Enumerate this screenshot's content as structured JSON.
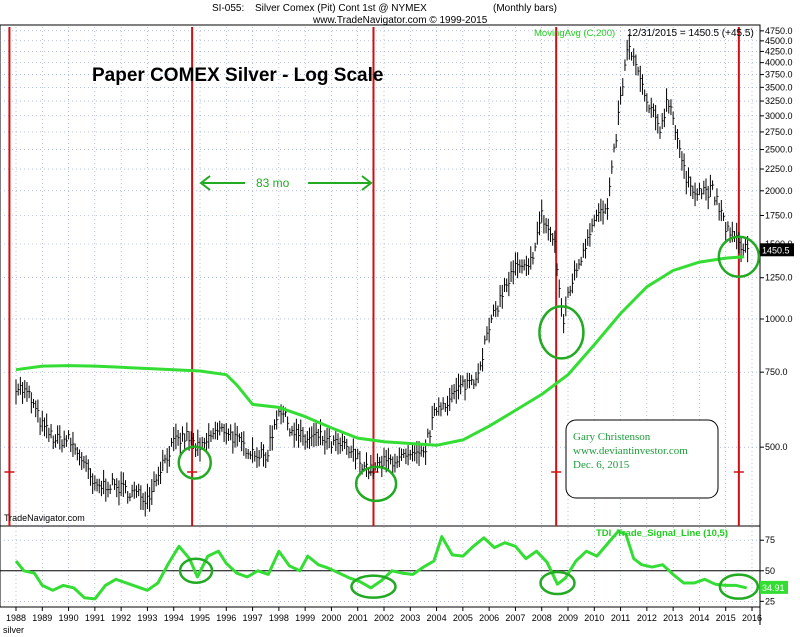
{
  "header": {
    "symbol": "SI-055:",
    "description": "Silver Comex (Pit) Cont 1st @ NYMEX",
    "period": "(Monthly bars)",
    "copyright": "www.TradeNavigator.com © 1999-2015"
  },
  "chart_data": [
    {
      "type": "bar",
      "title": "Paper COMEX Silver - Log Scale",
      "scale": "log",
      "ylim": [
        330,
        4850
      ],
      "yticks": [
        500,
        750,
        1000,
        1250,
        1500,
        1750,
        2000,
        2250,
        2500,
        2750,
        3000,
        3250,
        3500,
        3750,
        4000,
        4250,
        4500,
        4750
      ],
      "ytick_labels": [
        "500.0",
        "750.0",
        "1000.0",
        "1250.0",
        "1500.0",
        "1750.0",
        "2000.0",
        "2250.0",
        "2500.0",
        "2750.0",
        "3000.0",
        "3250.0",
        "3500.0",
        "3750.0",
        "4000.0",
        "4250.0",
        "4500.0",
        "4750.0"
      ],
      "last_value_label": "1450.5",
      "indicator_label": "MovingAvg (C,200)",
      "last_bar_info": "12/31/2015 = 1450.5 (+45.5)",
      "annotation_83mo": "83 mo",
      "watermark": "TradeNavigator.com",
      "note_lines": [
        "Gary Christenson",
        "www.deviantinvestor.com",
        "Dec. 6, 2015"
      ],
      "cycle_lows_x": [
        1987.75,
        1994.7,
        2001.6,
        2008.55,
        2015.5
      ],
      "circled_lows": [
        {
          "x": 1994.8,
          "y": 460
        },
        {
          "x": 2001.7,
          "y": 410
        },
        {
          "x": 2008.75,
          "y": 930
        },
        {
          "x": 2015.5,
          "y": 1400
        }
      ],
      "price_monthly": [
        [
          1988.0,
          700
        ],
        [
          1988.5,
          660
        ],
        [
          1989.0,
          560
        ],
        [
          1989.5,
          520
        ],
        [
          1990.0,
          520
        ],
        [
          1990.5,
          470
        ],
        [
          1991.0,
          400
        ],
        [
          1991.5,
          410
        ],
        [
          1992.0,
          400
        ],
        [
          1992.5,
          390
        ],
        [
          1993.0,
          380
        ],
        [
          1993.5,
          450
        ],
        [
          1994.0,
          510
        ],
        [
          1994.5,
          530
        ],
        [
          1995.0,
          490
        ],
        [
          1995.5,
          540
        ],
        [
          1996.0,
          550
        ],
        [
          1996.5,
          510
        ],
        [
          1997.0,
          490
        ],
        [
          1997.5,
          470
        ],
        [
          1998.0,
          620
        ],
        [
          1998.5,
          550
        ],
        [
          1999.0,
          520
        ],
        [
          1999.5,
          530
        ],
        [
          2000.0,
          510
        ],
        [
          2000.5,
          500
        ],
        [
          2001.0,
          470
        ],
        [
          2001.5,
          440
        ],
        [
          2002.0,
          460
        ],
        [
          2002.5,
          470
        ],
        [
          2003.0,
          470
        ],
        [
          2003.5,
          480
        ],
        [
          2004.0,
          620
        ],
        [
          2004.5,
          650
        ],
        [
          2005.0,
          700
        ],
        [
          2005.5,
          730
        ],
        [
          2006.0,
          950
        ],
        [
          2006.5,
          1150
        ],
        [
          2007.0,
          1320
        ],
        [
          2007.5,
          1300
        ],
        [
          2008.0,
          1750
        ],
        [
          2008.5,
          1500
        ],
        [
          2008.8,
          960
        ],
        [
          2009.0,
          1150
        ],
        [
          2009.5,
          1400
        ],
        [
          2010.0,
          1750
        ],
        [
          2010.5,
          1800
        ],
        [
          2011.0,
          3300
        ],
        [
          2011.3,
          4400
        ],
        [
          2011.6,
          3900
        ],
        [
          2012.0,
          3200
        ],
        [
          2012.5,
          2800
        ],
        [
          2012.8,
          3300
        ],
        [
          2013.0,
          3000
        ],
        [
          2013.5,
          2100
        ],
        [
          2014.0,
          2000
        ],
        [
          2014.5,
          2000
        ],
        [
          2015.0,
          1650
        ],
        [
          2015.5,
          1500
        ],
        [
          2016.0,
          1450
        ]
      ],
      "moving_average": [
        [
          1988.0,
          760
        ],
        [
          1989.0,
          775
        ],
        [
          1990.0,
          777
        ],
        [
          1991.0,
          775
        ],
        [
          1992.0,
          770
        ],
        [
          1993.0,
          765
        ],
        [
          1994.0,
          760
        ],
        [
          1995.0,
          755
        ],
        [
          1996.0,
          740
        ],
        [
          1996.4,
          700
        ],
        [
          1997.0,
          630
        ],
        [
          1998.0,
          620
        ],
        [
          1999.0,
          590
        ],
        [
          2000.0,
          555
        ],
        [
          2001.0,
          525
        ],
        [
          2002.0,
          515
        ],
        [
          2003.0,
          510
        ],
        [
          2004.0,
          505
        ],
        [
          2005.0,
          520
        ],
        [
          2006.0,
          560
        ],
        [
          2007.0,
          610
        ],
        [
          2008.0,
          665
        ],
        [
          2009.0,
          740
        ],
        [
          2010.0,
          870
        ],
        [
          2011.0,
          1030
        ],
        [
          2012.0,
          1190
        ],
        [
          2013.0,
          1300
        ],
        [
          2014.0,
          1360
        ],
        [
          2015.0,
          1390
        ],
        [
          2015.7,
          1400
        ]
      ]
    },
    {
      "type": "line",
      "indicator_label": "TDI_Trade_Signal_Line (10,5)",
      "ylim": [
        22,
        85
      ],
      "yticks": [
        25,
        50,
        75
      ],
      "midline": 50,
      "last_value_label": "34.91",
      "values": [
        [
          1988.0,
          58
        ],
        [
          1988.3,
          50
        ],
        [
          1988.7,
          48
        ],
        [
          1989.0,
          38
        ],
        [
          1989.4,
          34
        ],
        [
          1989.8,
          38
        ],
        [
          1990.2,
          36
        ],
        [
          1990.6,
          28
        ],
        [
          1991.0,
          27
        ],
        [
          1991.4,
          38
        ],
        [
          1991.8,
          43
        ],
        [
          1992.2,
          40
        ],
        [
          1992.6,
          37
        ],
        [
          1993.0,
          34
        ],
        [
          1993.4,
          40
        ],
        [
          1993.8,
          56
        ],
        [
          1994.2,
          70
        ],
        [
          1994.6,
          60
        ],
        [
          1994.9,
          45
        ],
        [
          1995.3,
          62
        ],
        [
          1995.7,
          66
        ],
        [
          1996.0,
          56
        ],
        [
          1996.4,
          48
        ],
        [
          1996.8,
          45
        ],
        [
          1997.2,
          50
        ],
        [
          1997.6,
          47
        ],
        [
          1998.0,
          66
        ],
        [
          1998.4,
          54
        ],
        [
          1998.8,
          50
        ],
        [
          1999.1,
          62
        ],
        [
          1999.5,
          55
        ],
        [
          1999.9,
          52
        ],
        [
          2000.3,
          48
        ],
        [
          2000.7,
          44
        ],
        [
          2001.1,
          41
        ],
        [
          2001.5,
          36
        ],
        [
          2001.9,
          42
        ],
        [
          2002.3,
          50
        ],
        [
          2002.7,
          48
        ],
        [
          2003.1,
          47
        ],
        [
          2003.5,
          53
        ],
        [
          2003.9,
          58
        ],
        [
          2004.2,
          78
        ],
        [
          2004.6,
          63
        ],
        [
          2005.0,
          62
        ],
        [
          2005.4,
          70
        ],
        [
          2005.8,
          77
        ],
        [
          2006.2,
          69
        ],
        [
          2006.6,
          73
        ],
        [
          2007.0,
          70
        ],
        [
          2007.4,
          60
        ],
        [
          2007.8,
          66
        ],
        [
          2008.2,
          57
        ],
        [
          2008.6,
          39
        ],
        [
          2008.9,
          44
        ],
        [
          2009.3,
          58
        ],
        [
          2009.7,
          66
        ],
        [
          2010.1,
          62
        ],
        [
          2010.5,
          72
        ],
        [
          2010.9,
          82
        ],
        [
          2011.2,
          80
        ],
        [
          2011.5,
          60
        ],
        [
          2011.8,
          55
        ],
        [
          2012.2,
          53
        ],
        [
          2012.6,
          55
        ],
        [
          2013.0,
          47
        ],
        [
          2013.4,
          40
        ],
        [
          2013.8,
          40
        ],
        [
          2014.2,
          43
        ],
        [
          2014.6,
          39
        ],
        [
          2015.0,
          38
        ],
        [
          2015.4,
          38
        ],
        [
          2015.8,
          36
        ]
      ]
    }
  ],
  "x_axis": {
    "labels": [
      "1988",
      "1989",
      "1990",
      "1991",
      "1992",
      "1993",
      "1994",
      "1995",
      "1996",
      "1997",
      "1998",
      "1999",
      "2000",
      "2001",
      "2002",
      "2003",
      "2004",
      "2005",
      "2006",
      "2007",
      "2008",
      "2009",
      "2010",
      "2011",
      "2012",
      "2013",
      "2014",
      "2015",
      "2016"
    ]
  },
  "footer_label": "silver",
  "colors": {
    "price": "#000000",
    "moving_average": "#33dd33",
    "cycle_line": "#d01010",
    "circle": "#22aa22",
    "grid": "#8899cc",
    "signal": "#33dd33",
    "last_value_box": "#000000",
    "signal_value_box": "#33dd33"
  }
}
